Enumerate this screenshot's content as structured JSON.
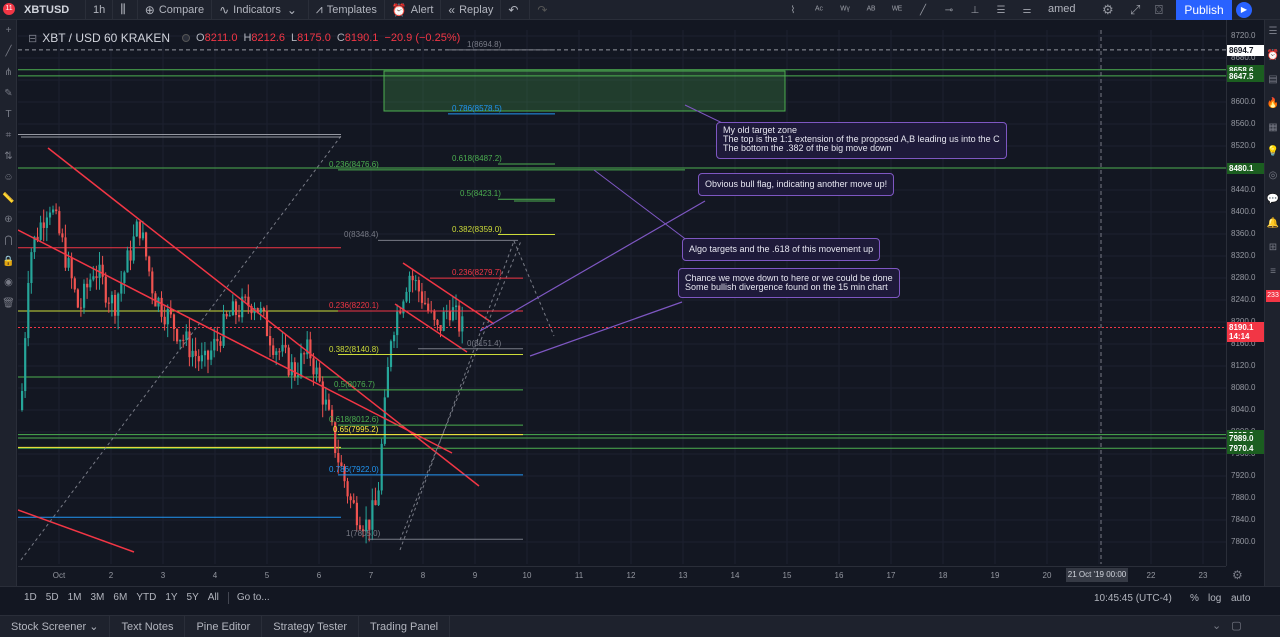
{
  "notifications": "11",
  "toolbar": {
    "symbol": "XBTUSD",
    "interval": "1h",
    "compare": "Compare",
    "indicators": "Indicators",
    "templates": "Templates",
    "alert": "Alert",
    "replay": "Replay",
    "layout_name": "amed",
    "publish": "Publish"
  },
  "legend": {
    "title": "XBT / USD  60  KRAKEN",
    "open_label": "O",
    "open": "8211.0",
    "high_label": "H",
    "high": "8212.6",
    "low_label": "L",
    "low": "8175.0",
    "close_label": "C",
    "close": "8190.1",
    "change": "−20.9 (−0.25%)"
  },
  "price_axis": {
    "ticks": [
      "8720.0",
      "8680.0",
      "8640.0",
      "8600.0",
      "8560.0",
      "8520.0",
      "8480.0",
      "8440.0",
      "8400.0",
      "8360.0",
      "8320.0",
      "8280.0",
      "8240.0",
      "8200.0",
      "8160.0",
      "8120.0",
      "8080.0",
      "8040.0",
      "8000.0",
      "7960.0",
      "7920.0",
      "7880.0",
      "7840.0",
      "7800.0"
    ],
    "labels": [
      {
        "text": "8694.7",
        "bg": "#ffffff",
        "fg": "#131722"
      },
      {
        "text": "8658.6",
        "bg": "#1b5e20",
        "fg": "#ffffff"
      },
      {
        "text": "8647.5",
        "bg": "#1b5e20",
        "fg": "#ffffff"
      },
      {
        "text": "8480.1",
        "bg": "#1b5e20",
        "fg": "#ffffff"
      },
      {
        "text": "8190.1",
        "bg": "#f23645",
        "fg": "#ffffff"
      },
      {
        "text": "14:14",
        "bg": "#f23645",
        "fg": "#ffffff"
      },
      {
        "text": "7995.2",
        "bg": "#1b5e20",
        "fg": "#ffffff"
      },
      {
        "text": "7989.0",
        "bg": "#1b5e20",
        "fg": "#ffffff"
      },
      {
        "text": "7970.4",
        "bg": "#1b5e20",
        "fg": "#ffffff"
      }
    ]
  },
  "time_axis": {
    "ticks": [
      "Oct",
      "2",
      "3",
      "4",
      "5",
      "6",
      "7",
      "8",
      "9",
      "10",
      "11",
      "12",
      "13",
      "14",
      "15",
      "16",
      "17",
      "18",
      "19",
      "20",
      "21",
      "22",
      "23"
    ],
    "cursor": "21 Oct '19   00:00"
  },
  "fib_levels": [
    {
      "text": "1(8694.8)",
      "color": "#787b86"
    },
    {
      "text": "0.786(8578.5)",
      "color": "#2196f3"
    },
    {
      "text": "0.618(8487.2)",
      "color": "#4caf50"
    },
    {
      "text": "0.236(8476.6)",
      "color": "#4caf50"
    },
    {
      "text": "0.5(8423.1)",
      "color": "#4caf50"
    },
    {
      "text": "0.382(8359.0)",
      "color": "#cddc39"
    },
    {
      "text": "0(8348.4)",
      "color": "#787b86"
    },
    {
      "text": "0.236(8279.7)",
      "color": "#f23645"
    },
    {
      "text": "0.236(8220.1)",
      "color": "#f23645"
    },
    {
      "text": "0(8151.4)",
      "color": "#787b86"
    },
    {
      "text": "0.382(8140.8)",
      "color": "#cddc39"
    },
    {
      "text": "0.5(8076.7)",
      "color": "#4caf50"
    },
    {
      "text": "0.618(8012.6)",
      "color": "#4caf50"
    },
    {
      "text": "0.65(7995.2)",
      "color": "#ffeb3b"
    },
    {
      "text": "0.786(7922.0)",
      "color": "#2196f3"
    },
    {
      "text": "1(7805.0)",
      "color": "#787b86"
    }
  ],
  "callouts": {
    "target_zone": [
      "My old target zone",
      "The top is the 1:1 extension of the proposed A,B leading us into the C",
      "The bottom the .382 of the big move down"
    ],
    "bull_flag": [
      "Obvious bull flag, indicating another move up!"
    ],
    "algo": [
      "Algo targets and the .618 of this movement up"
    ],
    "chance": [
      "Chance we move down to here or we could be done",
      "Some bullish divergence found on the 15 min chart"
    ]
  },
  "range_bar": {
    "ranges": [
      "1D",
      "5D",
      "1M",
      "3M",
      "6M",
      "YTD",
      "1Y",
      "5Y",
      "All"
    ],
    "goto": "Go to...",
    "clock": "10:45:45 (UTC-4)",
    "percent": "%",
    "log": "log",
    "auto": "auto"
  },
  "bottom_tabs": [
    "Stock Screener",
    "Text Notes",
    "Pine Editor",
    "Strategy Tester",
    "Trading Panel"
  ],
  "colors": {
    "background": "#131722",
    "up_candle": "#26a69a",
    "down_candle": "#ef5350",
    "channel": "#f23645",
    "annotation": "#7e57c2",
    "target_zone": "#4caf50",
    "accent": "#2962ff"
  }
}
